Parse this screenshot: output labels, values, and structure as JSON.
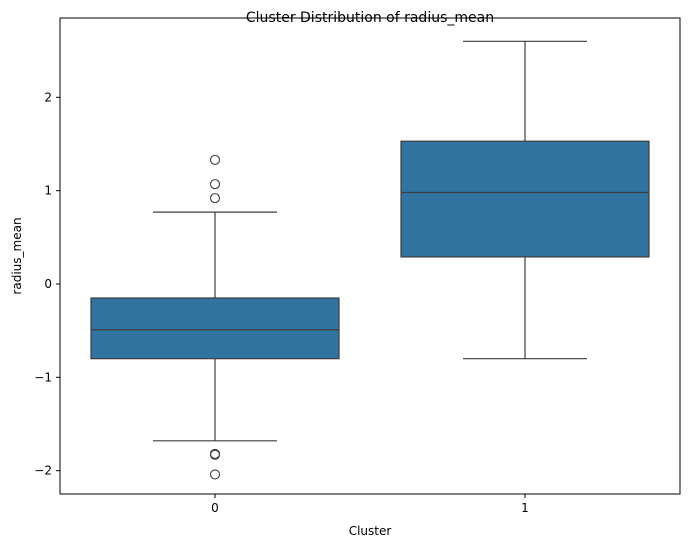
{
  "chart_data": {
    "type": "box",
    "title": "Cluster Distribution of radius_mean",
    "xlabel": "Cluster",
    "ylabel": "radius_mean",
    "categories": [
      "0",
      "1"
    ],
    "ylim": [
      -2.25,
      2.85
    ],
    "yticks": [
      -2,
      -1,
      0,
      1,
      2
    ],
    "ytick_labels": [
      "−2",
      "−1",
      "0",
      "1",
      "2"
    ],
    "grid": false,
    "box_color": "#3274a1",
    "line_color": "#3d3d3d",
    "boxes": [
      {
        "category": "0",
        "whisker_low": -1.68,
        "q1": -0.8,
        "median": -0.49,
        "q3": -0.15,
        "whisker_high": 0.77,
        "outliers": [
          1.33,
          1.07,
          0.92,
          -1.82,
          -1.83,
          -2.04
        ]
      },
      {
        "category": "1",
        "whisker_low": -0.8,
        "q1": 0.29,
        "median": 0.98,
        "q3": 1.53,
        "whisker_high": 2.6,
        "outliers": []
      }
    ]
  }
}
